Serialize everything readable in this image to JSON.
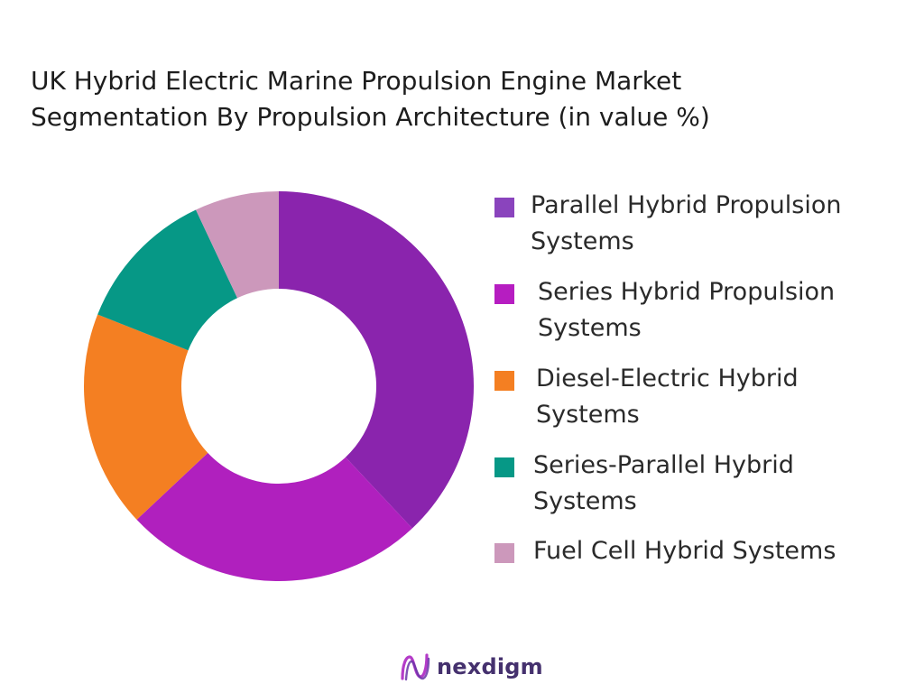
{
  "chart_data": {
    "type": "pie",
    "variant": "donut",
    "title_lines": [
      "UK Hybrid Electric Marine Propulsion Engine Market",
      "Segmentation By Propulsion Architecture (in value %)"
    ],
    "categories": [
      "Parallel Hybrid Propulsion Systems",
      "Series Hybrid Propulsion Systems",
      "Diesel-Electric Hybrid Systems",
      "Series-Parallel Hybrid Systems",
      "Fuel Cell Hybrid Systems"
    ],
    "values": [
      38,
      25,
      18,
      12,
      7
    ],
    "colors": [
      "#8a24ad",
      "#b020be",
      "#f47f22",
      "#069886",
      "#cc98bb"
    ],
    "legend_position": "right"
  },
  "legend": {
    "items": [
      {
        "label": "Parallel Hybrid Propulsion Systems",
        "color": "#8a44bd"
      },
      {
        "label": "Series Hybrid Propulsion Systems",
        "color": "#b61dc1"
      },
      {
        "label": "Diesel-Electric Hybrid Systems",
        "color": "#f47f22"
      },
      {
        "label": "Series-Parallel Hybrid Systems",
        "color": "#069886"
      },
      {
        "label": "Fuel Cell Hybrid Systems",
        "color": "#cc98bb"
      }
    ]
  },
  "brand": {
    "name": "nexdigm",
    "icon": "nexdigm-logo-icon",
    "color": "#45316e",
    "accent": "#b43cc8"
  }
}
